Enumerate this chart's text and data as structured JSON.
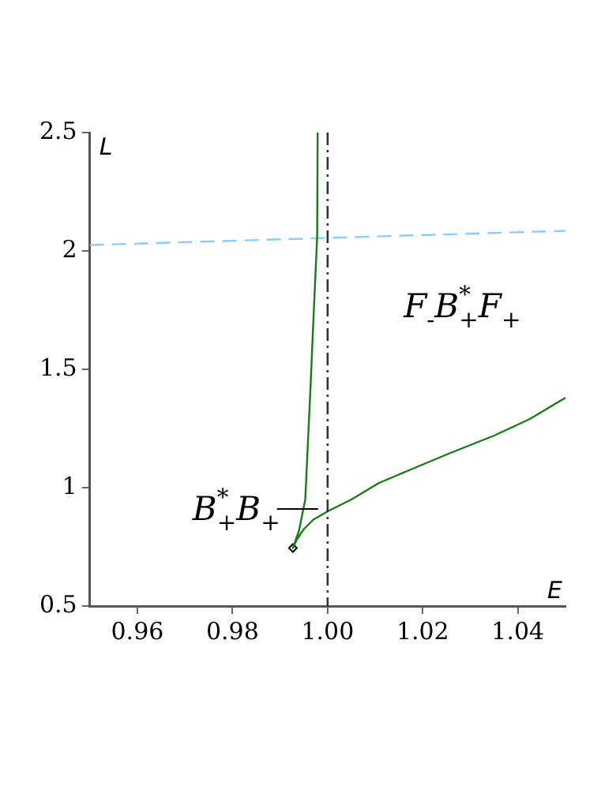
{
  "chart_data": {
    "type": "line",
    "xlabel": "E",
    "ylabel": "L",
    "xlim": [
      0.95,
      1.05
    ],
    "xticks": [
      0.96,
      0.98,
      {
        "value": 1.0,
        "label": "1.00"
      },
      1.02,
      1.04
    ],
    "ylim": [
      0.5,
      2.5
    ],
    "yticks": [
      0.5,
      1,
      1.5,
      2,
      2.5
    ],
    "grid": false,
    "legend": false,
    "marker": "none",
    "line_style": "solid",
    "series": [
      {
        "color": "#1a7a1a",
        "x": [
          0.9979,
          0.9978,
          0.9971,
          0.9964,
          0.9953,
          0.994,
          0.9927,
          0.9935,
          0.995,
          0.997,
          1.0,
          1.005,
          1.0108,
          1.0167,
          1.025,
          1.035,
          1.0425,
          1.05
        ],
        "values": [
          2.5,
          2.06,
          1.75,
          1.425,
          0.95,
          0.82,
          0.745,
          0.78,
          0.825,
          0.865,
          0.9,
          0.95,
          1.02,
          1.07,
          1.14,
          1.22,
          1.29,
          1.38
        ]
      },
      {
        "color": "#87cefa",
        "line_style": "dashed",
        "x": [
          0.95,
          1.05
        ],
        "values": [
          2.025,
          2.085
        ]
      },
      {
        "type": "scatter",
        "color": "#000000",
        "marker": "diamond",
        "x": [
          0.9927
        ],
        "values": [
          0.745
        ]
      }
    ],
    "ref_lines": [
      {
        "axis": "x",
        "value": 1.0,
        "color": "#333333",
        "line_style": "dashdot"
      }
    ],
    "annotations": [
      "F$_{-}$B$^{*}$$_{+}$F$_{+}$",
      {
        "text": "B$^{*}$$_{+}$B$_{+}$",
        "x": 0.998,
        "y": 0.91
      }
    ]
  }
}
